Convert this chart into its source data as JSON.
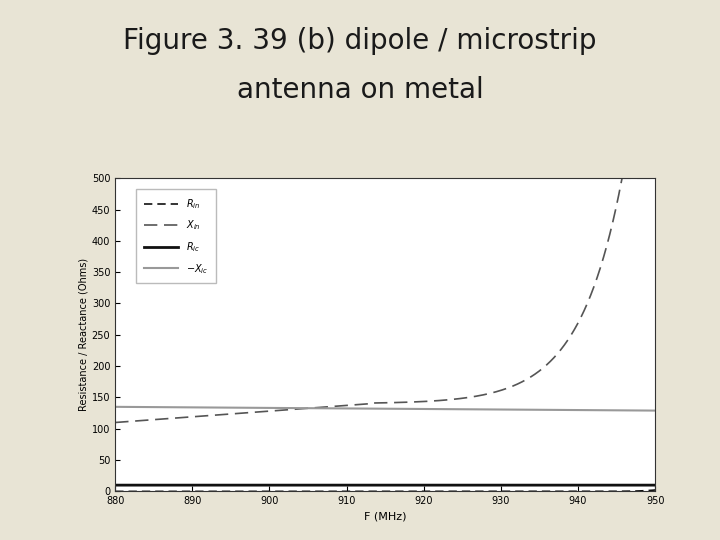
{
  "title_line1": "Figure 3. 39 (b) dipole / microstrip",
  "title_line2": "antenna on metal",
  "title_fontsize": 20,
  "title_color": "#1a1a1a",
  "bg_color": "#e8e4d5",
  "plot_bg_color": "#ffffff",
  "xlabel": "F (MHz)",
  "ylabel": "Resistance / Reactance (Ohms)",
  "xlim": [
    880,
    950
  ],
  "ylim": [
    0,
    500
  ],
  "xticks": [
    880,
    890,
    900,
    910,
    920,
    930,
    940,
    950
  ],
  "yticks": [
    0,
    50,
    100,
    150,
    200,
    250,
    300,
    350,
    400,
    450,
    500
  ],
  "freq_start": 880,
  "freq_end": 950,
  "legend_fontsize": 7
}
